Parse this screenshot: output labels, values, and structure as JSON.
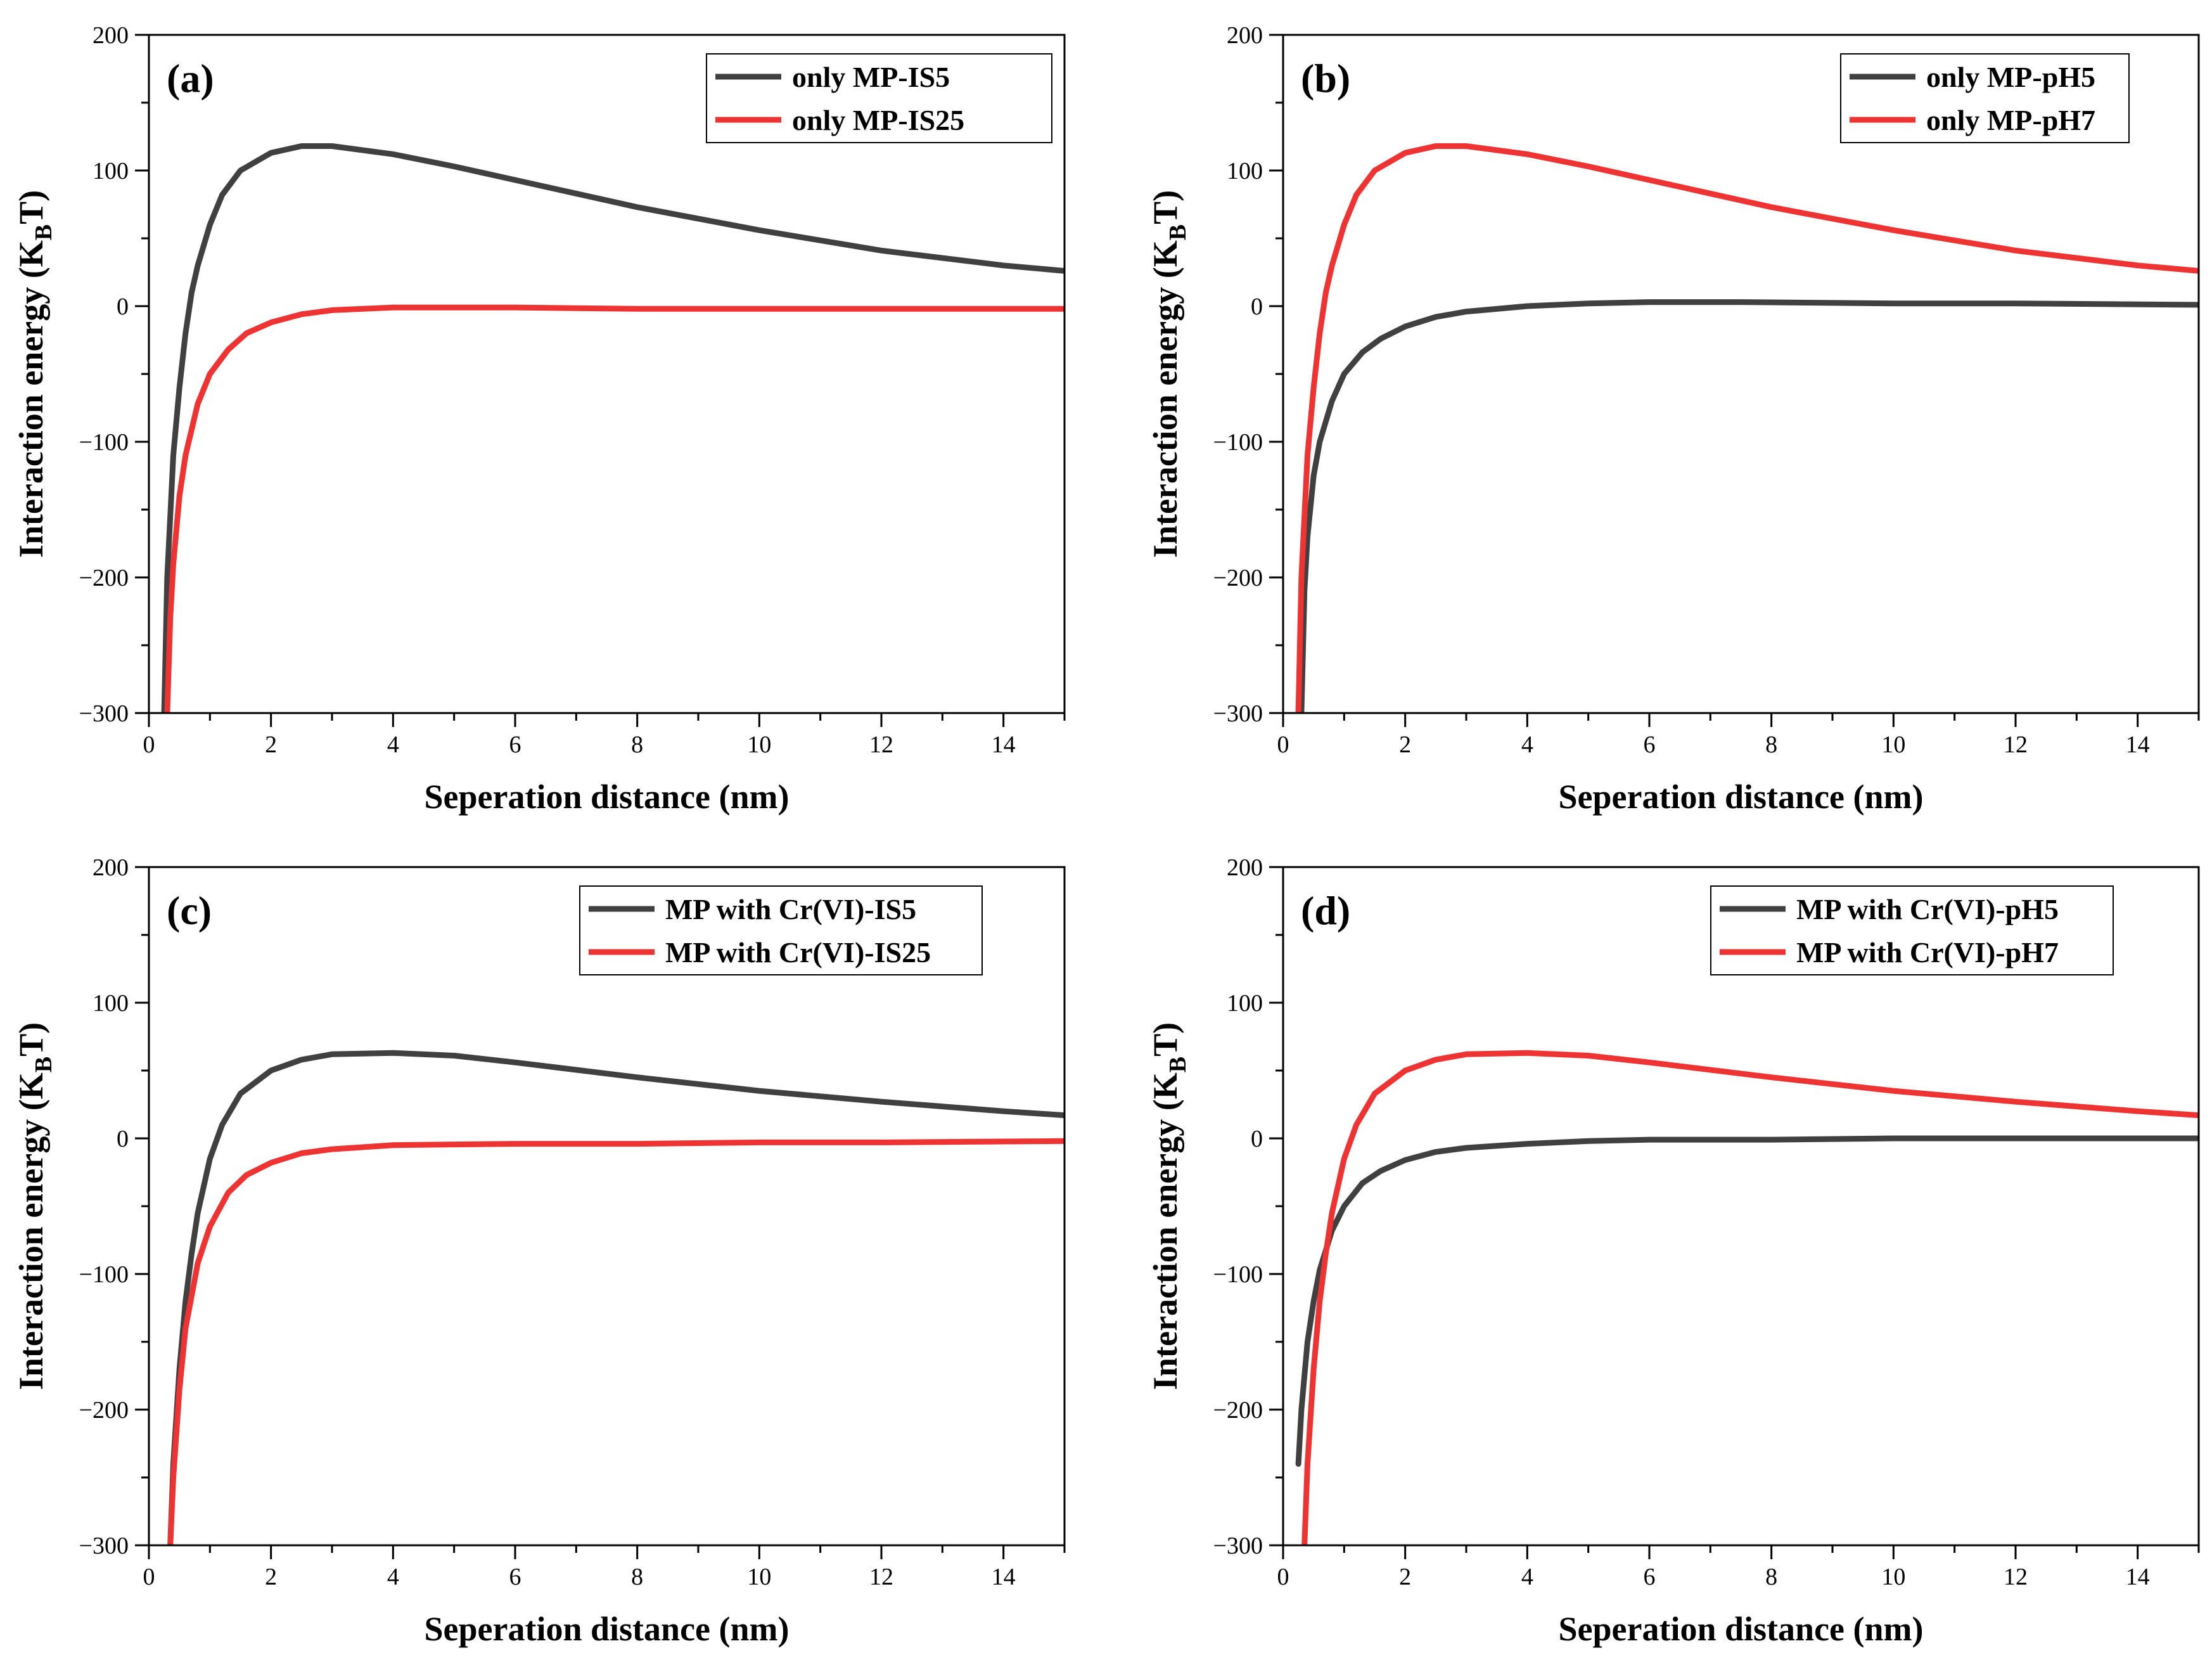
{
  "chart_data": [
    {
      "type": "line",
      "panel_label": "(a)",
      "xlabel": "Seperation distance (nm)",
      "ylabel_main": "Interaction energy (K",
      "ylabel_sub": "B",
      "ylabel_end": "T)",
      "xlim": [
        0,
        15
      ],
      "ylim": [
        -300,
        200
      ],
      "xticks": [
        0,
        2,
        4,
        6,
        8,
        10,
        12,
        14
      ],
      "yticks": [
        -300,
        -200,
        -100,
        0,
        100,
        200
      ],
      "legend_position": "top-right",
      "series": [
        {
          "name": "only MP-IS5",
          "color": "#404040",
          "x": [
            0.25,
            0.3,
            0.4,
            0.5,
            0.6,
            0.7,
            0.8,
            1.0,
            1.2,
            1.5,
            2.0,
            2.5,
            3.0,
            4.0,
            5.0,
            6.0,
            8.0,
            10.0,
            12.0,
            14.0,
            15.0
          ],
          "y": [
            -300,
            -200,
            -110,
            -60,
            -20,
            10,
            30,
            60,
            82,
            100,
            113,
            118,
            118,
            112,
            103,
            93,
            73,
            56,
            41,
            30,
            26
          ]
        },
        {
          "name": "only MP-IS25",
          "color": "#ee3333",
          "x": [
            0.3,
            0.35,
            0.4,
            0.5,
            0.6,
            0.8,
            1.0,
            1.3,
            1.6,
            2.0,
            2.5,
            3.0,
            4.0,
            6.0,
            8.0,
            10.0,
            12.0,
            15.0
          ],
          "y": [
            -300,
            -230,
            -190,
            -140,
            -110,
            -72,
            -50,
            -32,
            -20,
            -12,
            -6,
            -3,
            -1,
            -1,
            -2,
            -2,
            -2,
            -2
          ]
        }
      ]
    },
    {
      "type": "line",
      "panel_label": "(b)",
      "xlabel": "Seperation distance (nm)",
      "ylabel_main": "Interaction energy (K",
      "ylabel_sub": "B",
      "ylabel_end": "T)",
      "xlim": [
        0,
        15
      ],
      "ylim": [
        -300,
        200
      ],
      "xticks": [
        0,
        2,
        4,
        6,
        8,
        10,
        12,
        14
      ],
      "yticks": [
        -300,
        -200,
        -100,
        0,
        100,
        200
      ],
      "legend_position": "top-right",
      "series": [
        {
          "name": "only MP-pH5",
          "color": "#404040",
          "x": [
            0.3,
            0.35,
            0.4,
            0.5,
            0.6,
            0.8,
            1.0,
            1.3,
            1.6,
            2.0,
            2.5,
            3.0,
            4.0,
            5.0,
            6.0,
            7.5,
            10.0,
            12.0,
            15.0
          ],
          "y": [
            -300,
            -210,
            -170,
            -125,
            -100,
            -70,
            -50,
            -34,
            -24,
            -15,
            -8,
            -4,
            0,
            2,
            3,
            3,
            2,
            2,
            1
          ]
        },
        {
          "name": "only MP-pH7",
          "color": "#ee3333",
          "x": [
            0.25,
            0.3,
            0.4,
            0.5,
            0.6,
            0.7,
            0.8,
            1.0,
            1.2,
            1.5,
            2.0,
            2.5,
            3.0,
            4.0,
            5.0,
            6.0,
            8.0,
            10.0,
            12.0,
            14.0,
            15.0
          ],
          "y": [
            -300,
            -200,
            -110,
            -60,
            -20,
            10,
            30,
            60,
            82,
            100,
            113,
            118,
            118,
            112,
            103,
            93,
            73,
            56,
            41,
            30,
            26
          ]
        }
      ]
    },
    {
      "type": "line",
      "panel_label": "(c)",
      "xlabel": "Seperation distance (nm)",
      "ylabel_main": "Interaction energy (K",
      "ylabel_sub": "B",
      "ylabel_end": "T)",
      "xlim": [
        0,
        15
      ],
      "ylim": [
        -300,
        200
      ],
      "xticks": [
        0,
        2,
        4,
        6,
        8,
        10,
        12,
        14
      ],
      "yticks": [
        -300,
        -200,
        -100,
        0,
        100,
        200
      ],
      "legend_position": "top-right",
      "series": [
        {
          "name": "MP with Cr(VI)-IS5",
          "color": "#404040",
          "x": [
            0.35,
            0.4,
            0.5,
            0.6,
            0.7,
            0.8,
            1.0,
            1.2,
            1.5,
            2.0,
            2.5,
            3.0,
            4.0,
            5.0,
            6.0,
            8.0,
            10.0,
            12.0,
            14.0,
            15.0
          ],
          "y": [
            -300,
            -240,
            -170,
            -120,
            -85,
            -55,
            -15,
            10,
            33,
            50,
            58,
            62,
            63,
            61,
            56,
            45,
            35,
            27,
            20,
            17
          ]
        },
        {
          "name": "MP with Cr(VI)-IS25",
          "color": "#ee3333",
          "x": [
            0.35,
            0.4,
            0.5,
            0.6,
            0.8,
            1.0,
            1.3,
            1.6,
            2.0,
            2.5,
            3.0,
            4.0,
            6.0,
            8.0,
            10.0,
            12.0,
            15.0
          ],
          "y": [
            -300,
            -250,
            -185,
            -140,
            -92,
            -65,
            -40,
            -27,
            -18,
            -11,
            -8,
            -5,
            -4,
            -4,
            -3,
            -3,
            -2
          ]
        }
      ]
    },
    {
      "type": "line",
      "panel_label": "(d)",
      "xlabel": "Seperation distance (nm)",
      "ylabel_main": "Interaction energy (K",
      "ylabel_sub": "B",
      "ylabel_end": "T)",
      "xlim": [
        0,
        15
      ],
      "ylim": [
        -300,
        200
      ],
      "xticks": [
        0,
        2,
        4,
        6,
        8,
        10,
        12,
        14
      ],
      "yticks": [
        -300,
        -200,
        -100,
        0,
        100,
        200
      ],
      "legend_position": "top-right",
      "series": [
        {
          "name": "MP with Cr(VI)-pH5",
          "color": "#404040",
          "x": [
            0.25,
            0.3,
            0.4,
            0.5,
            0.6,
            0.8,
            1.0,
            1.3,
            1.6,
            2.0,
            2.5,
            3.0,
            4.0,
            5.0,
            6.0,
            8.0,
            10.0,
            12.0,
            15.0
          ],
          "y": [
            -240,
            -200,
            -150,
            -120,
            -97,
            -68,
            -50,
            -33,
            -24,
            -16,
            -10,
            -7,
            -4,
            -2,
            -1,
            -1,
            0,
            0,
            0
          ]
        },
        {
          "name": "MP with Cr(VI)-pH7",
          "color": "#ee3333",
          "x": [
            0.35,
            0.4,
            0.5,
            0.6,
            0.7,
            0.8,
            1.0,
            1.2,
            1.5,
            2.0,
            2.5,
            3.0,
            4.0,
            5.0,
            6.0,
            8.0,
            10.0,
            12.0,
            14.0,
            15.0
          ],
          "y": [
            -300,
            -240,
            -170,
            -120,
            -85,
            -55,
            -15,
            10,
            33,
            50,
            58,
            62,
            63,
            61,
            56,
            45,
            35,
            27,
            20,
            17
          ]
        }
      ]
    }
  ]
}
